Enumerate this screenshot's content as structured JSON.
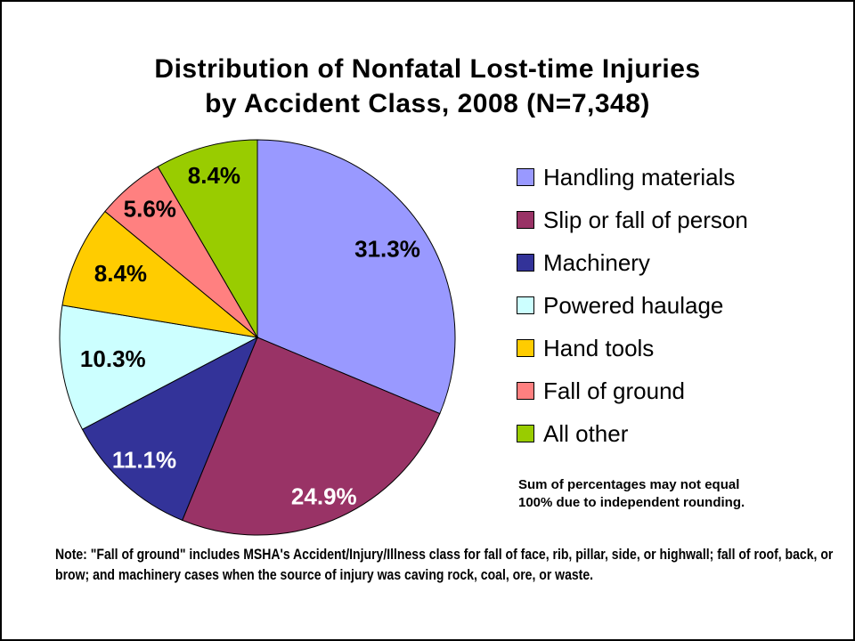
{
  "slide": {
    "title_line1": "Distribution of Nonfatal Lost-time Injuries",
    "title_line2": "by Accident Class, 2008 (N=7,348)",
    "footnote": "Note: \"Fall of ground\" includes MSHA's Accident/Injury/Illness class for fall of face, rib, pillar, side, or highwall; fall of roof, back, or brow; and machinery cases when the source of injury was caving rock, coal, ore, or waste."
  },
  "chart_data": {
    "type": "pie",
    "title": "Distribution of Nonfatal Lost-time Injuries by Accident Class, 2008 (N=7,348)",
    "n_total": "N=7,348",
    "year": "2008",
    "rounding_note": "Sum of percentages may not equal 100% due to independent rounding.",
    "legend_position": "right",
    "start_angle_deg": 0,
    "direction": "clockwise",
    "slices": [
      {
        "label": "Handling materials",
        "value": 31.3,
        "display": "31.3%",
        "color": "#9999FF",
        "label_color": "#000000"
      },
      {
        "label": "Slip or fall of person",
        "value": 24.9,
        "display": "24.9%",
        "color": "#993366",
        "label_color": "#FFFFFF"
      },
      {
        "label": "Machinery",
        "value": 11.1,
        "display": "11.1%",
        "color": "#333399",
        "label_color": "#FFFFFF"
      },
      {
        "label": "Powered haulage",
        "value": 10.3,
        "display": "10.3%",
        "color": "#CCFFFF",
        "label_color": "#000000"
      },
      {
        "label": "Hand tools",
        "value": 8.4,
        "display": "8.4%",
        "color": "#FFCC00",
        "label_color": "#000000"
      },
      {
        "label": "Fall of ground",
        "value": 5.6,
        "display": "5.6%",
        "color": "#FF8080",
        "label_color": "#000000"
      },
      {
        "label": "All other",
        "value": 8.4,
        "display": "8.4%",
        "color": "#99CC00",
        "label_color": "#000000"
      }
    ],
    "layout": {
      "label_radius_factors": [
        0.79,
        0.88,
        0.85,
        0.74,
        0.76,
        0.84,
        0.84
      ],
      "radius_px": 222,
      "stroke_color": "#000000"
    }
  }
}
